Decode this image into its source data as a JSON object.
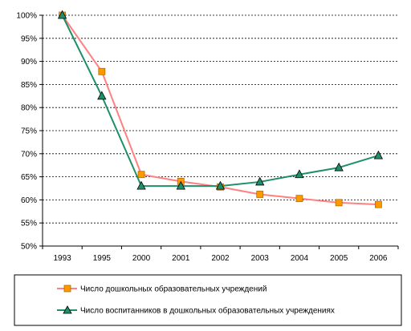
{
  "chart_data": {
    "type": "line",
    "x": [
      "1993",
      "1995",
      "2000",
      "2001",
      "2002",
      "2003",
      "2004",
      "2005",
      "2006"
    ],
    "ylim": [
      50,
      100
    ],
    "y_ticks": [
      "100%",
      "95%",
      "90%",
      "85%",
      "80%",
      "75%",
      "70%",
      "65%",
      "60%",
      "55%",
      "50%"
    ],
    "grid": "horizontal dashed",
    "legend_position": "bottom",
    "series": [
      {
        "name": "Число дошкольных образовательных учреждений",
        "color": "#ff8080",
        "marker": "square",
        "marker_fill": "#ff9900",
        "values": [
          100,
          87.8,
          65.5,
          64.0,
          62.8,
          61.2,
          60.3,
          59.4,
          59.0
        ]
      },
      {
        "name": "Число воспитанников в дошкольных образовательных учреждениях",
        "color": "#1f8f6a",
        "marker": "triangle",
        "marker_fill": "#1f8f6a",
        "values": [
          100,
          82.5,
          63.0,
          63.0,
          63.0,
          63.9,
          65.5,
          67.0,
          69.6
        ]
      }
    ]
  }
}
